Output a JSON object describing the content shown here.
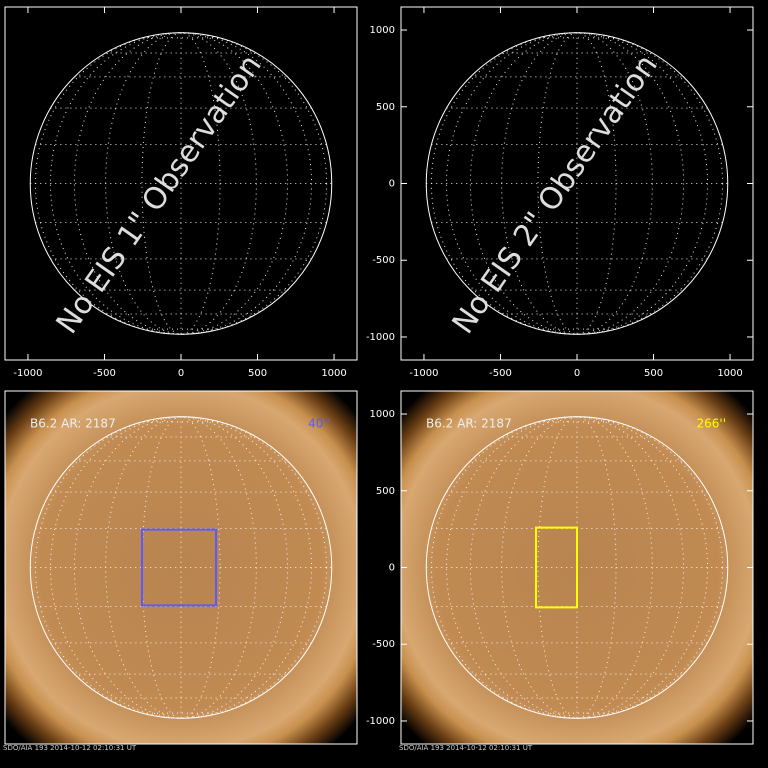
{
  "chart_data": [
    {
      "type": "image",
      "annotation": "No EIS 1\" Observation",
      "xlim": [
        -1150,
        1150
      ],
      "ylim": [
        -1150,
        1150
      ],
      "xticks": [
        -1000,
        -500,
        0,
        500,
        1000
      ]
    },
    {
      "type": "image",
      "annotation": "No EIS 2\" Observation",
      "xlim": [
        -1150,
        1150
      ],
      "ylim": [
        -1150,
        1150
      ],
      "xticks": [
        -1000,
        -500,
        0,
        500,
        1000
      ],
      "yticks": [
        -1000,
        -500,
        0,
        500,
        1000
      ]
    },
    {
      "type": "image",
      "label": "B6.2 AR: 2187",
      "box_label": "40''",
      "box": {
        "x": [
          -255,
          229
        ],
        "y": [
          -247,
          247
        ],
        "color": "#5a5aff"
      },
      "footer": "SDO/AIA 193  2014-10-12 02:10:31 UT",
      "xlim": [
        -1150,
        1150
      ],
      "ylim": [
        -1150,
        1150
      ]
    },
    {
      "type": "image",
      "label": "B6.2 AR: 2187",
      "box_label": "266''",
      "box": {
        "x": [
          -268,
          0
        ],
        "y": [
          -260,
          260
        ],
        "color": "#ffff00"
      },
      "footer": "SDO/AIA 193  2014-10-12 02:10:31 UT",
      "xlim": [
        -1150,
        1150
      ],
      "ylim": [
        -1150,
        1150
      ],
      "yticks": [
        -1000,
        -500,
        0,
        500,
        1000
      ]
    }
  ]
}
